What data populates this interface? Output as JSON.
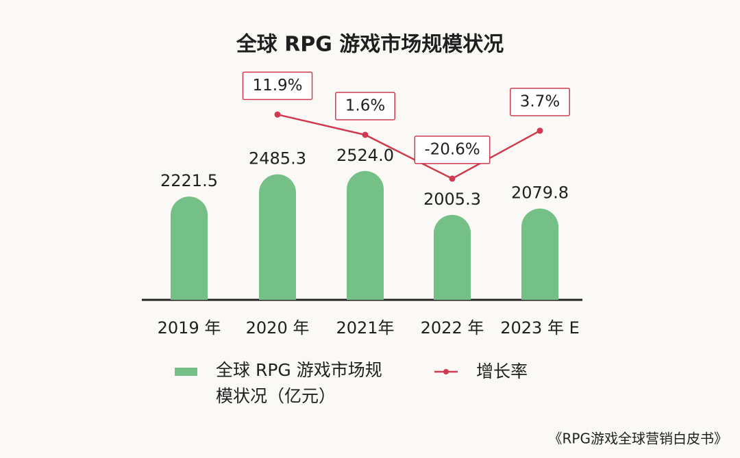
{
  "chart_data": {
    "type": "bar-line",
    "title": "全球 RPG 游戏市场规模状况",
    "categories": [
      "2019 年",
      "2020 年",
      "2021年",
      "2022 年",
      "2023 年 E"
    ],
    "series": [
      {
        "name": "全球 RPG 游戏市场规模状况（亿元）",
        "type": "bar",
        "color": "#74c087",
        "values": [
          2221.5,
          2485.3,
          2524.0,
          2005.3,
          2079.8
        ],
        "value_labels": [
          "2221.5",
          "2485.3",
          "2524.0",
          "2005.3",
          "2079.8"
        ]
      },
      {
        "name": "增长率",
        "type": "line",
        "axis": "y2",
        "color": "#d0394f",
        "values": [
          null,
          11.9,
          1.6,
          -20.6,
          3.7
        ],
        "value_labels": [
          null,
          "11.9%",
          "1.6%",
          "-20.6%",
          "3.7%"
        ]
      }
    ],
    "ylim": [
      1000,
      3000
    ],
    "y2lim": [
      -30,
      20
    ],
    "source": "《RPG游戏全球营销白皮书》"
  }
}
